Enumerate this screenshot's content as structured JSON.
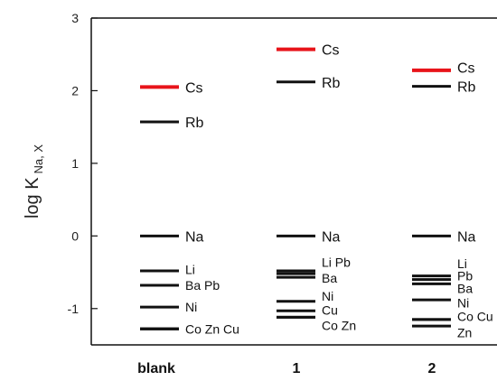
{
  "chart_data": {
    "type": "level-diagram",
    "ylabel_main": "log K",
    "ylabel_sub": "Na, X",
    "ylim": [
      -1.5,
      3
    ],
    "yticks": [
      3,
      2,
      1,
      0,
      -1
    ],
    "grid": false,
    "categories": [
      "blank",
      "1",
      "2"
    ],
    "colors": {
      "highlight": "#e8141a",
      "normal": "#111111"
    },
    "columns": [
      {
        "category": "blank",
        "levels": [
          {
            "ion": "Cs",
            "value": 2.05,
            "highlight": true
          },
          {
            "ion": "Rb",
            "value": 1.57
          },
          {
            "ion": "Na",
            "value": 0.0
          },
          {
            "ion": "Li",
            "value": -0.48
          },
          {
            "ion": "Ba",
            "value": -0.68
          },
          {
            "ion": "Pb",
            "value": -0.68
          },
          {
            "ion": "Ni",
            "value": -0.98
          },
          {
            "ion": "Co",
            "value": -1.28
          },
          {
            "ion": "Zn",
            "value": -1.28
          },
          {
            "ion": "Cu",
            "value": -1.28
          }
        ],
        "labels": [
          {
            "text": "Cs",
            "value": 2.05,
            "size": "big"
          },
          {
            "text": "Rb",
            "value": 1.57,
            "size": "big"
          },
          {
            "text": "Na",
            "value": 0.0,
            "size": "big"
          },
          {
            "text": "Li",
            "value": -0.46,
            "size": "small"
          },
          {
            "text": "Ba Pb",
            "value": -0.68,
            "size": "small"
          },
          {
            "text": "Ni",
            "value": -0.98,
            "size": "small"
          },
          {
            "text": "Co Zn Cu",
            "value": -1.28,
            "size": "small"
          }
        ]
      },
      {
        "category": "1",
        "levels": [
          {
            "ion": "Cs",
            "value": 2.57,
            "highlight": true
          },
          {
            "ion": "Rb",
            "value": 2.12
          },
          {
            "ion": "Na",
            "value": 0.0
          },
          {
            "ion": "Li",
            "value": -0.48
          },
          {
            "ion": "Pb",
            "value": -0.52
          },
          {
            "ion": "Ba",
            "value": -0.57
          },
          {
            "ion": "Ni",
            "value": -0.9
          },
          {
            "ion": "Cu",
            "value": -1.03
          },
          {
            "ion": "Co",
            "value": -1.12
          },
          {
            "ion": "Zn",
            "value": -1.12
          }
        ],
        "labels": [
          {
            "text": "Cs",
            "value": 2.57,
            "size": "big"
          },
          {
            "text": "Rb",
            "value": 2.12,
            "size": "big"
          },
          {
            "text": "Na",
            "value": 0.0,
            "size": "big"
          },
          {
            "text": "Li Pb",
            "value": -0.36,
            "size": "small"
          },
          {
            "text": "Ba",
            "value": -0.58,
            "size": "small"
          },
          {
            "text": "Ni",
            "value": -0.83,
            "size": "small"
          },
          {
            "text": "Cu",
            "value": -1.02,
            "size": "small"
          },
          {
            "text": "Co Zn",
            "value": -1.23,
            "size": "small"
          }
        ]
      },
      {
        "category": "2",
        "levels": [
          {
            "ion": "Cs",
            "value": 2.28,
            "highlight": true
          },
          {
            "ion": "Rb",
            "value": 2.06
          },
          {
            "ion": "Na",
            "value": 0.0
          },
          {
            "ion": "Li",
            "value": -0.55
          },
          {
            "ion": "Pb",
            "value": -0.6
          },
          {
            "ion": "Ba",
            "value": -0.66
          },
          {
            "ion": "Ni",
            "value": -0.88
          },
          {
            "ion": "Co",
            "value": -1.15
          },
          {
            "ion": "Cu",
            "value": -1.15
          },
          {
            "ion": "Zn",
            "value": -1.24
          }
        ],
        "labels": [
          {
            "text": "Cs",
            "value": 2.32,
            "size": "big"
          },
          {
            "text": "Rb",
            "value": 2.06,
            "size": "big"
          },
          {
            "text": "Na",
            "value": 0.0,
            "size": "big"
          },
          {
            "text": "Li",
            "value": -0.38,
            "size": "small"
          },
          {
            "text": "Pb",
            "value": -0.55,
            "size": "small"
          },
          {
            "text": "Ba",
            "value": -0.72,
            "size": "small"
          },
          {
            "text": "Ni",
            "value": -0.92,
            "size": "small"
          },
          {
            "text": "Co Cu",
            "value": -1.11,
            "size": "small"
          },
          {
            "text": "Zn",
            "value": -1.33,
            "size": "small"
          }
        ]
      }
    ]
  }
}
